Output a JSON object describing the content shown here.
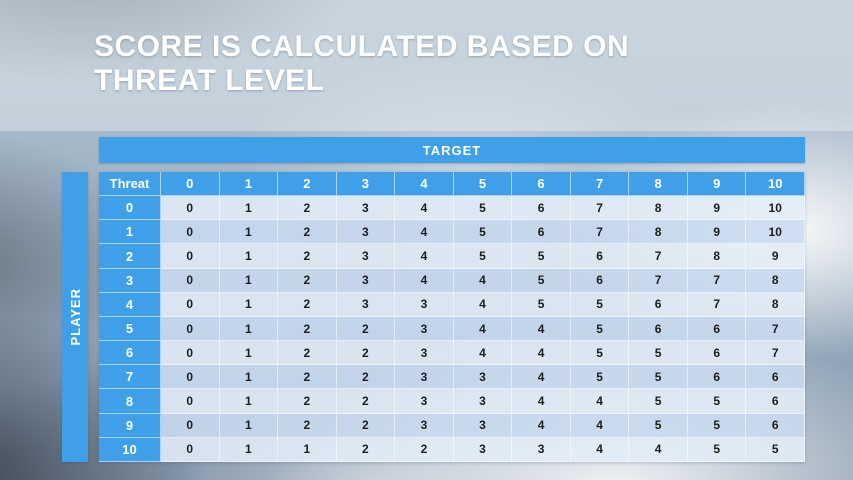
{
  "slide": {
    "title_line1": "SCORE IS CALCULATED BASED ON",
    "title_line2": "THREAT LEVEL"
  },
  "matrix": {
    "target_label": "TARGET",
    "player_label": "PLAYER",
    "corner_label": "Threat",
    "column_headers": [
      "0",
      "1",
      "2",
      "3",
      "4",
      "5",
      "6",
      "7",
      "8",
      "9",
      "10"
    ],
    "rows": [
      {
        "label": "0",
        "values": [
          "0",
          "1",
          "2",
          "3",
          "4",
          "5",
          "6",
          "7",
          "8",
          "9",
          "10"
        ]
      },
      {
        "label": "1",
        "values": [
          "0",
          "1",
          "2",
          "3",
          "4",
          "5",
          "6",
          "7",
          "8",
          "9",
          "10"
        ]
      },
      {
        "label": "2",
        "values": [
          "0",
          "1",
          "2",
          "3",
          "4",
          "5",
          "5",
          "6",
          "7",
          "8",
          "9"
        ]
      },
      {
        "label": "3",
        "values": [
          "0",
          "1",
          "2",
          "3",
          "4",
          "4",
          "5",
          "6",
          "7",
          "7",
          "8"
        ]
      },
      {
        "label": "4",
        "values": [
          "0",
          "1",
          "2",
          "3",
          "3",
          "4",
          "5",
          "5",
          "6",
          "7",
          "8"
        ]
      },
      {
        "label": "5",
        "values": [
          "0",
          "1",
          "2",
          "2",
          "3",
          "4",
          "4",
          "5",
          "6",
          "6",
          "7"
        ]
      },
      {
        "label": "6",
        "values": [
          "0",
          "1",
          "2",
          "2",
          "3",
          "4",
          "4",
          "5",
          "5",
          "6",
          "7"
        ]
      },
      {
        "label": "7",
        "values": [
          "0",
          "1",
          "2",
          "2",
          "3",
          "3",
          "4",
          "5",
          "5",
          "6",
          "6"
        ]
      },
      {
        "label": "8",
        "values": [
          "0",
          "1",
          "2",
          "2",
          "3",
          "3",
          "4",
          "4",
          "5",
          "5",
          "6"
        ]
      },
      {
        "label": "9",
        "values": [
          "0",
          "1",
          "2",
          "2",
          "3",
          "3",
          "4",
          "4",
          "5",
          "5",
          "6"
        ]
      },
      {
        "label": "10",
        "values": [
          "0",
          "1",
          "1",
          "2",
          "2",
          "3",
          "3",
          "4",
          "4",
          "5",
          "5"
        ]
      }
    ]
  },
  "colors": {
    "accent_blue": "#3f9fe8",
    "band_light": "#e3edf8",
    "band_dark": "#cadbf0"
  },
  "chart_data": {
    "type": "table",
    "title": "Score is calculated based on threat level",
    "row_axis_label": "PLAYER",
    "col_axis_label": "TARGET",
    "corner_label": "Threat",
    "columns": [
      0,
      1,
      2,
      3,
      4,
      5,
      6,
      7,
      8,
      9,
      10
    ],
    "rows": [
      0,
      1,
      2,
      3,
      4,
      5,
      6,
      7,
      8,
      9,
      10
    ],
    "values": [
      [
        0,
        1,
        2,
        3,
        4,
        5,
        6,
        7,
        8,
        9,
        10
      ],
      [
        0,
        1,
        2,
        3,
        4,
        5,
        6,
        7,
        8,
        9,
        10
      ],
      [
        0,
        1,
        2,
        3,
        4,
        5,
        5,
        6,
        7,
        8,
        9
      ],
      [
        0,
        1,
        2,
        3,
        4,
        4,
        5,
        6,
        7,
        7,
        8
      ],
      [
        0,
        1,
        2,
        3,
        3,
        4,
        5,
        5,
        6,
        7,
        8
      ],
      [
        0,
        1,
        2,
        2,
        3,
        4,
        4,
        5,
        6,
        6,
        7
      ],
      [
        0,
        1,
        2,
        2,
        3,
        4,
        4,
        5,
        5,
        6,
        7
      ],
      [
        0,
        1,
        2,
        2,
        3,
        3,
        4,
        5,
        5,
        6,
        6
      ],
      [
        0,
        1,
        2,
        2,
        3,
        3,
        4,
        4,
        5,
        5,
        6
      ],
      [
        0,
        1,
        2,
        2,
        3,
        3,
        4,
        4,
        5,
        5,
        6
      ],
      [
        0,
        1,
        1,
        2,
        2,
        3,
        3,
        4,
        4,
        5,
        5
      ]
    ]
  }
}
